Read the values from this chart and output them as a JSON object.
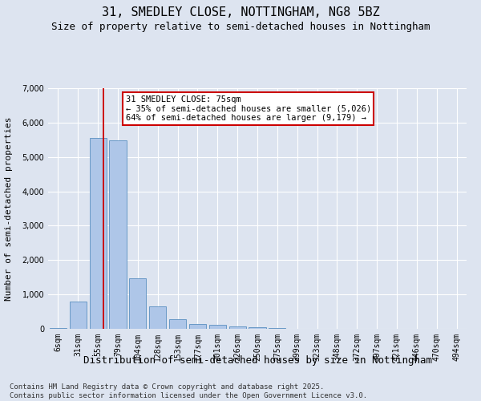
{
  "title": "31, SMEDLEY CLOSE, NOTTINGHAM, NG8 5BZ",
  "subtitle": "Size of property relative to semi-detached houses in Nottingham",
  "xlabel": "Distribution of semi-detached houses by size in Nottingham",
  "ylabel": "Number of semi-detached properties",
  "bin_labels": [
    "6sqm",
    "31sqm",
    "55sqm",
    "79sqm",
    "104sqm",
    "128sqm",
    "153sqm",
    "177sqm",
    "201sqm",
    "226sqm",
    "250sqm",
    "275sqm",
    "299sqm",
    "323sqm",
    "348sqm",
    "372sqm",
    "397sqm",
    "421sqm",
    "446sqm",
    "470sqm",
    "494sqm"
  ],
  "bar_values": [
    20,
    800,
    5550,
    5480,
    1480,
    650,
    290,
    140,
    120,
    70,
    55,
    30,
    10,
    5,
    3,
    2,
    1,
    1,
    0,
    0,
    0
  ],
  "bar_color": "#aec6e8",
  "bar_edge_color": "#5a8fc0",
  "vline_color": "#cc0000",
  "annotation_box_text": "31 SMEDLEY CLOSE: 75sqm\n← 35% of semi-detached houses are smaller (5,026)\n64% of semi-detached houses are larger (9,179) →",
  "annotation_box_color": "#cc0000",
  "annotation_text_color": "#000000",
  "background_color": "#dde4f0",
  "plot_bg_color": "#dde4f0",
  "footer_line1": "Contains HM Land Registry data © Crown copyright and database right 2025.",
  "footer_line2": "Contains public sector information licensed under the Open Government Licence v3.0.",
  "ylim": [
    0,
    7000
  ],
  "yticks": [
    0,
    1000,
    2000,
    3000,
    4000,
    5000,
    6000,
    7000
  ],
  "title_fontsize": 11,
  "subtitle_fontsize": 9,
  "xlabel_fontsize": 9,
  "ylabel_fontsize": 8,
  "tick_fontsize": 7,
  "footer_fontsize": 6.5,
  "annotation_fontsize": 7.5
}
